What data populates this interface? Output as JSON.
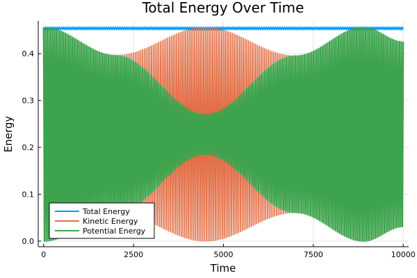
{
  "chart_data": {
    "type": "line",
    "title": "Total Energy Over Time",
    "xlabel": "Time",
    "ylabel": "Energy",
    "xlim": [
      -150,
      10150
    ],
    "ylim": [
      -0.012,
      0.47
    ],
    "xticks": [
      0,
      2500,
      5000,
      7500,
      10000
    ],
    "xtick_labels": [
      "0",
      "2500",
      "5000",
      "7500",
      "10000"
    ],
    "yticks": [
      0.0,
      0.1,
      0.2,
      0.3,
      0.4
    ],
    "ytick_labels": [
      "0.0",
      "0.1",
      "0.2",
      "0.3",
      "0.4"
    ],
    "grid": true,
    "legend_position": "bottom-left",
    "oscillation_cycles": 200,
    "series": [
      {
        "name": "Total Energy",
        "color": "#009AFA",
        "constant": 0.456,
        "ripple": 0.004
      },
      {
        "name": "Kinetic Energy",
        "color": "#E26F46",
        "envelope_x": [
          0,
          2000,
          4500,
          7000,
          8900,
          10000
        ],
        "envelope_upper": [
          0.456,
          0.396,
          0.456,
          0.395,
          0.456,
          0.425
        ],
        "envelope_lower": [
          0.0,
          0.06,
          0.0,
          0.061,
          0.0,
          0.031
        ]
      },
      {
        "name": "Potential Energy",
        "color": "#3DA44D",
        "envelope_x": [
          0,
          2000,
          4500,
          7000,
          8900,
          10000
        ],
        "envelope_upper": [
          0.456,
          0.396,
          0.27,
          0.395,
          0.456,
          0.425
        ],
        "envelope_lower": [
          0.0,
          0.06,
          0.185,
          0.061,
          0.0,
          0.031
        ]
      }
    ]
  }
}
